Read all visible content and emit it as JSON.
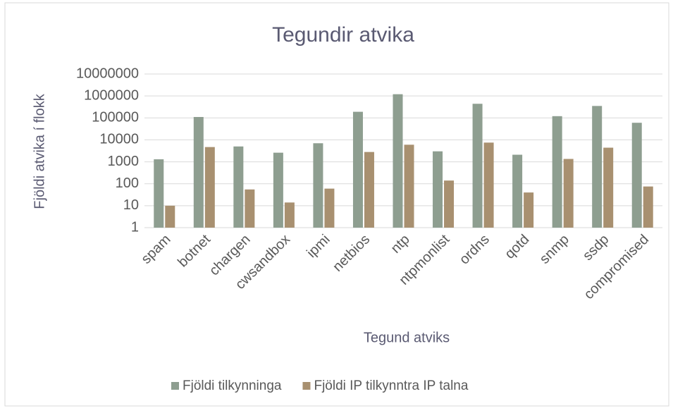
{
  "chart_data": {
    "type": "bar",
    "title": "Tegundir atvika",
    "xlabel": "Tegund atviks",
    "ylabel": "Fjöldi atvika í flokk",
    "categories": [
      "spam",
      "botnet",
      "chargen",
      "cwsandbox",
      "ipmi",
      "netbios",
      "ntp",
      "ntpmonlist",
      "ordns",
      "qotd",
      "snmp",
      "ssdp",
      "compromised"
    ],
    "series": [
      {
        "name": "Fjöldi tilkynninga",
        "color": "#8e9e90",
        "values": [
          1300,
          110000,
          5000,
          2600,
          7000,
          190000,
          1200000,
          3000,
          440000,
          2100,
          120000,
          350000,
          60000
        ]
      },
      {
        "name": "Fjöldi IP tilkynntra IP talna",
        "color": "#a89070",
        "values": [
          10,
          4700,
          55,
          14,
          60,
          2800,
          6000,
          140,
          7500,
          40,
          1350,
          4400,
          75
        ]
      }
    ],
    "ylim": [
      1,
      10000000
    ],
    "yticks": [
      1,
      10,
      100,
      1000,
      10000,
      100000,
      1000000,
      10000000
    ],
    "log_scale": true,
    "grid": true,
    "legend": "bottom"
  }
}
